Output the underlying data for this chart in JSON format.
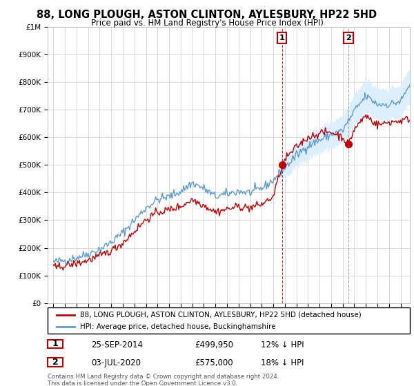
{
  "title": "88, LONG PLOUGH, ASTON CLINTON, AYLESBURY, HP22 5HD",
  "subtitle": "Price paid vs. HM Land Registry's House Price Index (HPI)",
  "ylim": [
    0,
    1000000
  ],
  "yticks": [
    0,
    100000,
    200000,
    300000,
    400000,
    500000,
    600000,
    700000,
    800000,
    900000,
    1000000
  ],
  "ytick_labels": [
    "£0",
    "£100K",
    "£200K",
    "£300K",
    "£400K",
    "£500K",
    "£600K",
    "£700K",
    "£800K",
    "£900K",
    "£1M"
  ],
  "hpi_color": "#5b9bd5",
  "price_color": "#c00000",
  "marker1_x": 2014.75,
  "marker1_price": 499950,
  "marker1_date": "25-SEP-2014",
  "marker1_pct": "12% ↓ HPI",
  "marker2_x": 2020.5,
  "marker2_price": 575000,
  "marker2_date": "03-JUL-2020",
  "marker2_pct": "18% ↓ HPI",
  "legend_label1": "88, LONG PLOUGH, ASTON CLINTON, AYLESBURY, HP22 5HD (detached house)",
  "legend_label2": "HPI: Average price, detached house, Buckinghamshire",
  "footer": "Contains HM Land Registry data © Crown copyright and database right 2024.\nThis data is licensed under the Open Government Licence v3.0.",
  "background_color": "#ffffff",
  "grid_color": "#cccccc",
  "hpi_shade_color": "#ddeeff",
  "shade_start_x": 2014.75,
  "xmin": 1994.5,
  "xmax": 2025.8
}
